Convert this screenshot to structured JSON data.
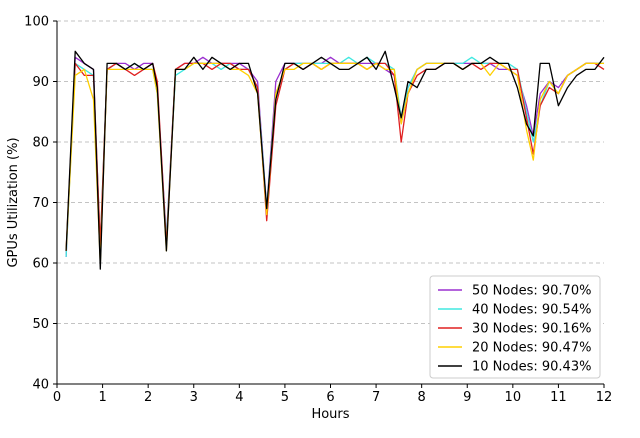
{
  "chart_data": {
    "type": "line",
    "title": "",
    "xlabel": "Hours",
    "ylabel": "GPUs Utilization (%)",
    "xlim": [
      0,
      12
    ],
    "ylim": [
      40,
      100
    ],
    "xticks": [
      0,
      1,
      2,
      3,
      4,
      5,
      6,
      7,
      8,
      9,
      10,
      11,
      12
    ],
    "yticks": [
      40,
      50,
      60,
      70,
      80,
      90,
      100
    ],
    "grid": "horizontal dashed",
    "legend_position": "bottom-right",
    "series": [
      {
        "name": "50 Nodes: 90.70%",
        "color": "#9b30d0",
        "x": [
          0.2,
          0.4,
          0.6,
          0.8,
          0.95,
          1.1,
          1.3,
          1.5,
          1.7,
          1.9,
          2.1,
          2.2,
          2.4,
          2.6,
          2.8,
          3.0,
          3.2,
          3.4,
          3.6,
          3.8,
          4.0,
          4.2,
          4.4,
          4.6,
          4.8,
          5.0,
          5.2,
          5.4,
          5.6,
          5.8,
          6.0,
          6.2,
          6.4,
          6.6,
          6.8,
          7.0,
          7.2,
          7.4,
          7.55,
          7.7,
          7.9,
          8.1,
          8.3,
          8.5,
          8.7,
          8.9,
          9.1,
          9.3,
          9.5,
          9.7,
          9.9,
          10.1,
          10.3,
          10.45,
          10.6,
          10.8,
          11.0,
          11.2,
          11.4,
          11.6,
          11.8,
          12.0
        ],
        "y": [
          61,
          94,
          93,
          92,
          62,
          92,
          93,
          93,
          92,
          93,
          93,
          89,
          64,
          92,
          93,
          93,
          94,
          93,
          93,
          93,
          93,
          92,
          90,
          69,
          90,
          93,
          93,
          93,
          93,
          93,
          94,
          93,
          93,
          93,
          93,
          93,
          92,
          91,
          83,
          89,
          92,
          93,
          93,
          93,
          93,
          93,
          93,
          93,
          93,
          92,
          92,
          91,
          86,
          81,
          88,
          90,
          89,
          91,
          92,
          93,
          93,
          93
        ]
      },
      {
        "name": "40 Nodes: 90.54%",
        "color": "#40e8e0",
        "x": [
          0.2,
          0.4,
          0.6,
          0.8,
          0.95,
          1.1,
          1.3,
          1.5,
          1.7,
          1.9,
          2.1,
          2.2,
          2.4,
          2.6,
          2.8,
          3.0,
          3.2,
          3.4,
          3.6,
          3.8,
          4.0,
          4.2,
          4.4,
          4.6,
          4.8,
          5.0,
          5.2,
          5.4,
          5.6,
          5.8,
          6.0,
          6.2,
          6.4,
          6.6,
          6.8,
          7.0,
          7.2,
          7.4,
          7.55,
          7.7,
          7.9,
          8.1,
          8.3,
          8.5,
          8.7,
          8.9,
          9.1,
          9.3,
          9.5,
          9.7,
          9.9,
          10.1,
          10.3,
          10.45,
          10.6,
          10.8,
          11.0,
          11.2,
          11.4,
          11.6,
          11.8,
          12.0
        ],
        "y": [
          61,
          93,
          92,
          91,
          63,
          92,
          93,
          92,
          93,
          92,
          92,
          88,
          64,
          91,
          92,
          93,
          93,
          93,
          92,
          93,
          92,
          92,
          89,
          69,
          88,
          92,
          93,
          93,
          93,
          93,
          93,
          93,
          94,
          93,
          94,
          93,
          93,
          92,
          84,
          89,
          92,
          93,
          93,
          93,
          93,
          93,
          94,
          93,
          93,
          93,
          93,
          92,
          85,
          80,
          86,
          90,
          88,
          91,
          92,
          93,
          93,
          93
        ]
      },
      {
        "name": "30 Nodes: 90.16%",
        "color": "#e02020",
        "x": [
          0.2,
          0.4,
          0.6,
          0.8,
          0.95,
          1.1,
          1.3,
          1.5,
          1.7,
          1.9,
          2.1,
          2.2,
          2.4,
          2.6,
          2.8,
          3.0,
          3.2,
          3.4,
          3.6,
          3.8,
          4.0,
          4.2,
          4.4,
          4.6,
          4.8,
          5.0,
          5.2,
          5.4,
          5.6,
          5.8,
          6.0,
          6.2,
          6.4,
          6.6,
          6.8,
          7.0,
          7.2,
          7.4,
          7.55,
          7.7,
          7.9,
          8.1,
          8.3,
          8.5,
          8.7,
          8.9,
          9.1,
          9.3,
          9.5,
          9.7,
          9.9,
          10.1,
          10.3,
          10.45,
          10.6,
          10.8,
          11.0,
          11.2,
          11.4,
          11.6,
          11.8,
          12.0
        ],
        "y": [
          62,
          93,
          91,
          91,
          63,
          92,
          93,
          92,
          91,
          92,
          93,
          90,
          63,
          92,
          93,
          93,
          93,
          92,
          93,
          93,
          92,
          92,
          89,
          67,
          86,
          92,
          93,
          92,
          93,
          92,
          93,
          93,
          93,
          93,
          92,
          93,
          93,
          91,
          80,
          88,
          91,
          92,
          92,
          93,
          93,
          92,
          93,
          92,
          93,
          93,
          92,
          92,
          84,
          78,
          86,
          89,
          88,
          91,
          92,
          93,
          93,
          92
        ]
      },
      {
        "name": "20 Nodes: 90.47%",
        "color": "#ffd000",
        "x": [
          0.2,
          0.4,
          0.6,
          0.8,
          0.95,
          1.1,
          1.3,
          1.5,
          1.7,
          1.9,
          2.1,
          2.2,
          2.4,
          2.6,
          2.8,
          3.0,
          3.2,
          3.4,
          3.6,
          3.8,
          4.0,
          4.2,
          4.4,
          4.6,
          4.8,
          5.0,
          5.2,
          5.4,
          5.6,
          5.8,
          6.0,
          6.2,
          6.4,
          6.6,
          6.8,
          7.0,
          7.2,
          7.4,
          7.55,
          7.7,
          7.9,
          8.1,
          8.3,
          8.5,
          8.7,
          8.9,
          9.1,
          9.3,
          9.5,
          9.7,
          9.9,
          10.1,
          10.3,
          10.45,
          10.6,
          10.8,
          11.0,
          11.2,
          11.4,
          11.6,
          11.8,
          12.0
        ],
        "y": [
          62,
          91,
          92,
          87,
          60,
          92,
          92,
          92,
          92,
          92,
          92,
          88,
          62,
          92,
          92,
          93,
          93,
          93,
          93,
          92,
          92,
          91,
          88,
          68,
          88,
          92,
          92,
          93,
          93,
          92,
          93,
          93,
          93,
          93,
          92,
          93,
          92,
          92,
          83,
          88,
          92,
          93,
          93,
          93,
          93,
          92,
          93,
          93,
          91,
          93,
          92,
          91,
          82,
          77,
          87,
          90,
          88,
          91,
          92,
          93,
          93,
          93
        ]
      },
      {
        "name": "10 Nodes: 90.43%",
        "color": "#000000",
        "x": [
          0.2,
          0.4,
          0.6,
          0.8,
          0.95,
          1.1,
          1.3,
          1.5,
          1.7,
          1.9,
          2.1,
          2.2,
          2.4,
          2.6,
          2.8,
          3.0,
          3.2,
          3.4,
          3.6,
          3.8,
          4.0,
          4.2,
          4.4,
          4.6,
          4.8,
          5.0,
          5.2,
          5.4,
          5.6,
          5.8,
          6.0,
          6.2,
          6.4,
          6.6,
          6.8,
          7.0,
          7.2,
          7.4,
          7.55,
          7.7,
          7.9,
          8.1,
          8.3,
          8.5,
          8.7,
          8.9,
          9.1,
          9.3,
          9.5,
          9.7,
          9.9,
          10.1,
          10.3,
          10.45,
          10.6,
          10.8,
          11.0,
          11.2,
          11.4,
          11.6,
          11.8,
          12.0
        ],
        "y": [
          62,
          95,
          93,
          92,
          59,
          93,
          93,
          92,
          93,
          92,
          93,
          89,
          62,
          92,
          92,
          94,
          92,
          94,
          93,
          92,
          93,
          93,
          88,
          69,
          87,
          93,
          93,
          92,
          93,
          94,
          93,
          92,
          92,
          93,
          94,
          92,
          95,
          89,
          84,
          90,
          89,
          92,
          92,
          93,
          93,
          92,
          93,
          93,
          94,
          93,
          93,
          89,
          83,
          81,
          93,
          93,
          86,
          89,
          91,
          92,
          92,
          94
        ]
      }
    ]
  }
}
